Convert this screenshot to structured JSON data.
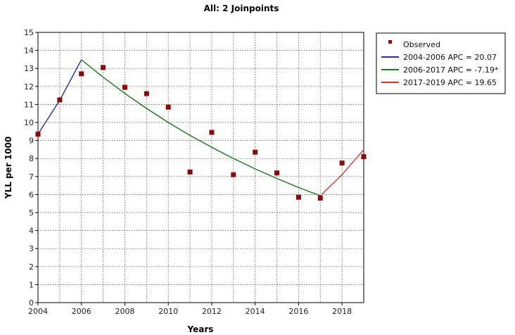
{
  "chart_data": {
    "type": "line",
    "title": "All: 2 Joinpoints",
    "xlabel": "Years",
    "ylabel": "YLL per 1000",
    "xlim": [
      2004,
      2019
    ],
    "ylim": [
      0,
      15
    ],
    "x_ticks": [
      "2004",
      "2006",
      "2008",
      "2010",
      "2012",
      "2014",
      "2016",
      "2018"
    ],
    "y_ticks": [
      "0",
      "1",
      "2",
      "3",
      "4",
      "5",
      "6",
      "7",
      "8",
      "9",
      "10",
      "11",
      "12",
      "13",
      "14",
      "15"
    ],
    "grid": true,
    "legend_position": "top-right",
    "observed": {
      "name": "Observed",
      "color": "#8b0a0a",
      "points": [
        {
          "x": 2004,
          "y": 9.35
        },
        {
          "x": 2005,
          "y": 11.25
        },
        {
          "x": 2006,
          "y": 12.7
        },
        {
          "x": 2007,
          "y": 13.05
        },
        {
          "x": 2008,
          "y": 11.95
        },
        {
          "x": 2009,
          "y": 11.6
        },
        {
          "x": 2010,
          "y": 10.85
        },
        {
          "x": 2011,
          "y": 7.25
        },
        {
          "x": 2012,
          "y": 9.45
        },
        {
          "x": 2013,
          "y": 7.1
        },
        {
          "x": 2014,
          "y": 8.35
        },
        {
          "x": 2015,
          "y": 7.2
        },
        {
          "x": 2016,
          "y": 5.85
        },
        {
          "x": 2017,
          "y": 5.8
        },
        {
          "x": 2018,
          "y": 7.75
        },
        {
          "x": 2019,
          "y": 8.1
        }
      ]
    },
    "series": [
      {
        "name": "2004-2006 APC  = 20.07",
        "color": "#2a2aa8",
        "x": [
          2004,
          2005,
          2006
        ],
        "y": [
          9.35,
          11.23,
          13.48
        ]
      },
      {
        "name": "2006-2017 APC  = -7.19*",
        "color": "#1a7a1a",
        "x": [
          2006,
          2007,
          2008,
          2009,
          2010,
          2011,
          2012,
          2013,
          2014,
          2015,
          2016,
          2017
        ],
        "y": [
          13.48,
          12.51,
          11.61,
          10.78,
          10.0,
          9.28,
          8.62,
          8.0,
          7.42,
          6.89,
          6.39,
          5.93
        ]
      },
      {
        "name": "2017-2019 APC  = 19.65",
        "color": "#c83a3a",
        "x": [
          2017,
          2018,
          2019
        ],
        "y": [
          5.93,
          7.1,
          8.49
        ]
      }
    ]
  }
}
